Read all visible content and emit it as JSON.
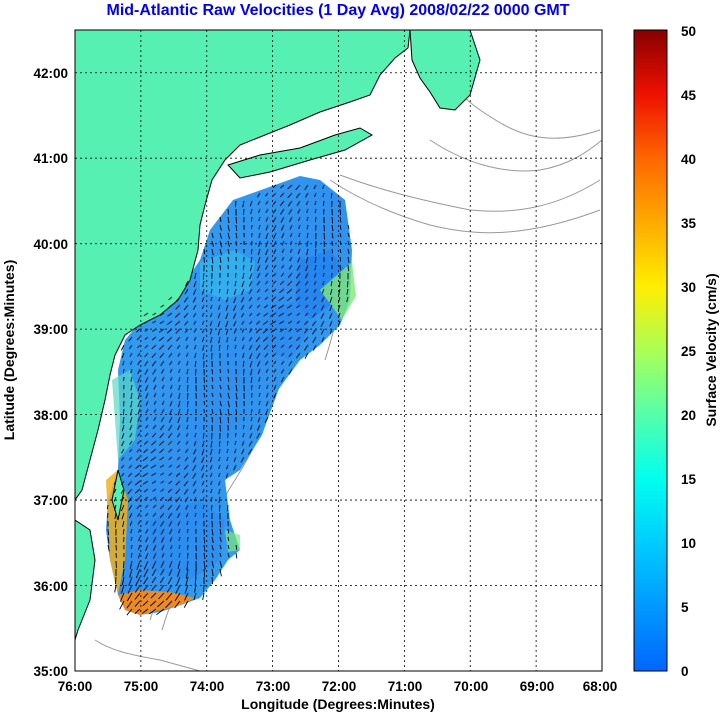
{
  "title": "Mid-Atlantic Raw Velocities (1 Day Avg) 2008/02/22 0000 GMT",
  "x_axis": {
    "label": "Longitude (Degrees:Minutes)",
    "ticks": [
      "76:00",
      "75:00",
      "74:00",
      "73:00",
      "72:00",
      "71:00",
      "70:00",
      "69:00",
      "68:00"
    ],
    "range_deg_west": [
      76,
      68
    ]
  },
  "y_axis": {
    "label": "Latitude (Degrees:Minutes)",
    "ticks": [
      "35:00",
      "36:00",
      "37:00",
      "38:00",
      "39:00",
      "40:00",
      "41:00",
      "42:00"
    ],
    "range_deg_north": [
      35,
      42.5
    ]
  },
  "colorbar": {
    "label": "Surface Velocity (cm/s)",
    "ticks": [
      "0",
      "5",
      "10",
      "15",
      "20",
      "25",
      "30",
      "35",
      "40",
      "45",
      "50"
    ],
    "range": [
      0,
      50
    ],
    "colors": [
      "#0066ff",
      "#0099ff",
      "#00ccff",
      "#00ffee",
      "#55ffaa",
      "#aaff55",
      "#ffee00",
      "#ffaa00",
      "#ff6600",
      "#ee1100",
      "#880000"
    ]
  },
  "colors": {
    "land": "#55f0b2",
    "coast": "#000000",
    "bathymetry": "#999999",
    "field_low": "#2f9cf0",
    "field_high": "#ff9a10",
    "grid": "#000000",
    "title": "#0000ee"
  }
}
